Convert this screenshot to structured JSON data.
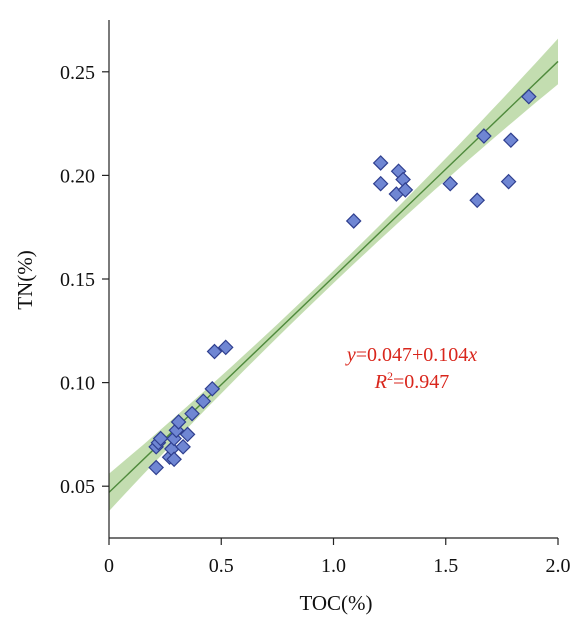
{
  "chart_data": {
    "type": "scatter",
    "xlabel": "TOC(%)",
    "ylabel": "TN(%)",
    "xlim": [
      0,
      2.0
    ],
    "ylim": [
      0.025,
      0.275
    ],
    "x_ticks": [
      0,
      0.5,
      1.0,
      1.5,
      2.0
    ],
    "x_tick_labels": [
      "0",
      "0.5",
      "1.0",
      "1.5",
      "2.0"
    ],
    "y_ticks": [
      0.05,
      0.1,
      0.15,
      0.2,
      0.25
    ],
    "y_tick_labels": [
      "0.05",
      "0.10",
      "0.15",
      "0.20",
      "0.25"
    ],
    "grid": false,
    "points": [
      {
        "x": 0.21,
        "y": 0.059
      },
      {
        "x": 0.21,
        "y": 0.069
      },
      {
        "x": 0.22,
        "y": 0.071
      },
      {
        "x": 0.23,
        "y": 0.073
      },
      {
        "x": 0.27,
        "y": 0.064
      },
      {
        "x": 0.28,
        "y": 0.068
      },
      {
        "x": 0.29,
        "y": 0.063
      },
      {
        "x": 0.29,
        "y": 0.073
      },
      {
        "x": 0.3,
        "y": 0.077
      },
      {
        "x": 0.31,
        "y": 0.081
      },
      {
        "x": 0.33,
        "y": 0.069
      },
      {
        "x": 0.35,
        "y": 0.075
      },
      {
        "x": 0.37,
        "y": 0.085
      },
      {
        "x": 0.42,
        "y": 0.091
      },
      {
        "x": 0.46,
        "y": 0.097
      },
      {
        "x": 0.47,
        "y": 0.115
      },
      {
        "x": 0.52,
        "y": 0.117
      },
      {
        "x": 1.09,
        "y": 0.178
      },
      {
        "x": 1.21,
        "y": 0.206
      },
      {
        "x": 1.21,
        "y": 0.196
      },
      {
        "x": 1.28,
        "y": 0.191
      },
      {
        "x": 1.29,
        "y": 0.202
      },
      {
        "x": 1.31,
        "y": 0.198
      },
      {
        "x": 1.32,
        "y": 0.193
      },
      {
        "x": 1.52,
        "y": 0.196
      },
      {
        "x": 1.64,
        "y": 0.188
      },
      {
        "x": 1.67,
        "y": 0.219
      },
      {
        "x": 1.78,
        "y": 0.197
      },
      {
        "x": 1.79,
        "y": 0.217
      },
      {
        "x": 1.87,
        "y": 0.238
      }
    ],
    "fit": {
      "intercept": 0.047,
      "slope": 0.104,
      "band_halfwidth_at_x0": 0.009,
      "band_halfwidth_at_mid": 0.003,
      "band_halfwidth_at_x2": 0.011,
      "line_color": "#4f8a3c",
      "band_color": "#a9cf8f"
    },
    "annotation": {
      "equation_y": "y",
      "equation_rest": "=0.047+0.104",
      "equation_x": "x",
      "r2_R": "R",
      "r2_sup": "2",
      "r2_value": "=0.947",
      "color": "#d9261c"
    },
    "marker": {
      "shape": "diamond",
      "fill": "#6f86d3",
      "edge": "#2f3f8f"
    }
  }
}
